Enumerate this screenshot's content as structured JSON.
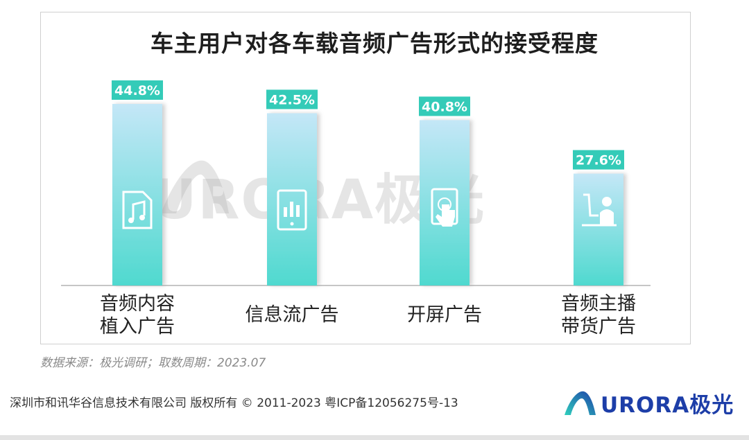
{
  "chart_data": {
    "type": "bar",
    "title": "车主用户对各车载音频广告形式的接受程度",
    "categories": [
      [
        "音频内容",
        "植入广告"
      ],
      [
        "信息流广告"
      ],
      [
        "开屏广告"
      ],
      [
        "音频主播",
        "带货广告"
      ]
    ],
    "values": [
      44.8,
      42.5,
      40.8,
      27.6
    ],
    "value_labels": [
      "44.8%",
      "42.5%",
      "40.8%",
      "27.6%"
    ],
    "icons": [
      "music-file-icon",
      "tablet-chart-icon",
      "tap-screen-icon",
      "presenter-icon"
    ],
    "ylim": [
      0,
      50
    ],
    "grid": false,
    "legend": "none"
  },
  "colors": {
    "bar_top": "#c4e7f7",
    "bar_bottom": "#4fd9cf",
    "label_bg": "#34cbb8",
    "label_text": "#ffffff",
    "logo_dark": "#1d3ea8",
    "logo_teal": "#2fd0bd"
  },
  "watermark": "URORA极光",
  "source": "数据来源：极光调研；取数周期：2023.07",
  "footer": "深圳市和讯华谷信息技术有限公司 版权所有 © 2011-2023 粤ICP备12056275号-13",
  "logo": {
    "text": "URORA极光"
  }
}
